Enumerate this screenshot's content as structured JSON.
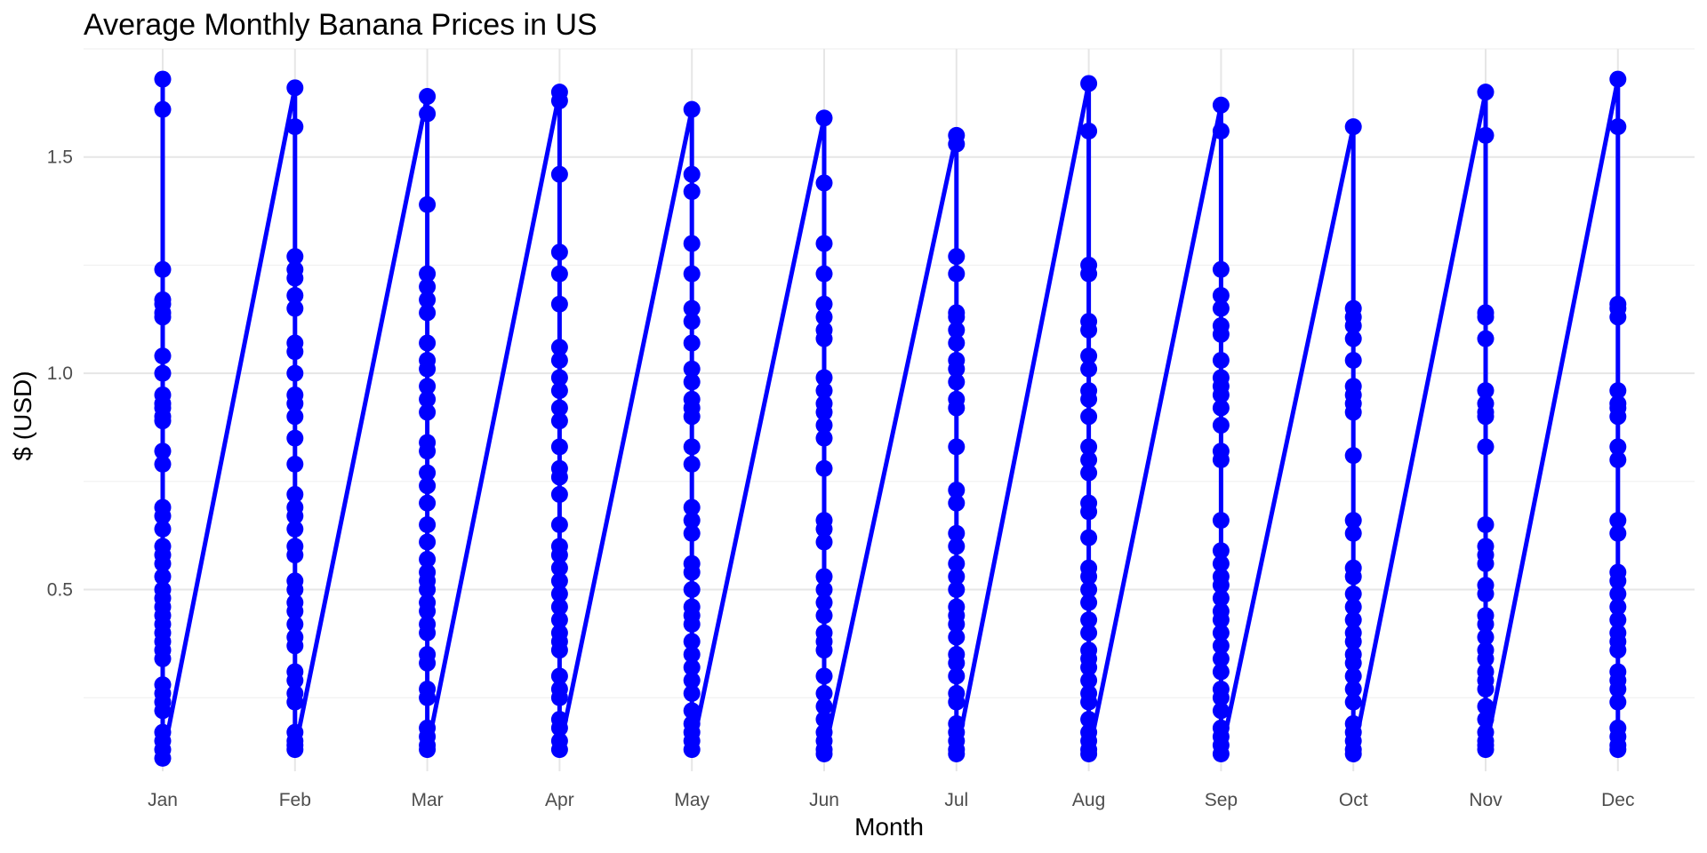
{
  "chart_data": {
    "type": "line",
    "title": "Average Monthly Banana Prices in US",
    "xlabel": "Month",
    "ylabel": "$ (USD)",
    "categories": [
      "Jan",
      "Feb",
      "Mar",
      "Apr",
      "May",
      "Jun",
      "Jul",
      "Aug",
      "Sep",
      "Oct",
      "Nov",
      "Dec"
    ],
    "ylim": [
      0.08,
      1.75
    ],
    "yticks": [
      0.5,
      1.0,
      1.5
    ],
    "ytick_labels": [
      "0.5",
      "1.0",
      "1.5"
    ],
    "grid": true,
    "legend": "none",
    "series": [
      {
        "color": "#0000ff",
        "values": [
          [
            1.68,
            1.61,
            1.24,
            1.17,
            1.16,
            1.14,
            1.13,
            1.04,
            1.0,
            0.95,
            0.93,
            0.92,
            0.9,
            0.89,
            0.82,
            0.79,
            0.69,
            0.67,
            0.64,
            0.6,
            0.58,
            0.56,
            0.53,
            0.5,
            0.48,
            0.46,
            0.44,
            0.42,
            0.4,
            0.38,
            0.36,
            0.34,
            0.28,
            0.26,
            0.24,
            0.22,
            0.17,
            0.15,
            0.13,
            0.11
          ],
          [
            1.66,
            1.57,
            1.27,
            1.24,
            1.22,
            1.18,
            1.15,
            1.07,
            1.05,
            1.0,
            0.95,
            0.93,
            0.9,
            0.85,
            0.79,
            0.72,
            0.69,
            0.67,
            0.64,
            0.6,
            0.58,
            0.52,
            0.5,
            0.47,
            0.45,
            0.42,
            0.39,
            0.37,
            0.31,
            0.29,
            0.26,
            0.24,
            0.17,
            0.15,
            0.14,
            0.13
          ],
          [
            1.64,
            1.6,
            1.39,
            1.23,
            1.2,
            1.17,
            1.14,
            1.07,
            1.03,
            1.01,
            0.97,
            0.94,
            0.91,
            0.84,
            0.82,
            0.77,
            0.74,
            0.7,
            0.65,
            0.61,
            0.57,
            0.54,
            0.52,
            0.5,
            0.47,
            0.45,
            0.42,
            0.4,
            0.35,
            0.33,
            0.27,
            0.25,
            0.18,
            0.16,
            0.14,
            0.13
          ],
          [
            1.65,
            1.63,
            1.46,
            1.28,
            1.23,
            1.16,
            1.06,
            1.03,
            0.99,
            0.96,
            0.92,
            0.89,
            0.83,
            0.78,
            0.76,
            0.72,
            0.65,
            0.6,
            0.58,
            0.55,
            0.52,
            0.49,
            0.46,
            0.43,
            0.4,
            0.38,
            0.36,
            0.3,
            0.27,
            0.25,
            0.2,
            0.18,
            0.15,
            0.13
          ],
          [
            1.61,
            1.46,
            1.42,
            1.3,
            1.23,
            1.15,
            1.12,
            1.07,
            1.01,
            0.98,
            0.94,
            0.92,
            0.9,
            0.83,
            0.79,
            0.69,
            0.66,
            0.63,
            0.56,
            0.54,
            0.5,
            0.46,
            0.44,
            0.42,
            0.38,
            0.35,
            0.32,
            0.29,
            0.26,
            0.22,
            0.19,
            0.17,
            0.15,
            0.13
          ],
          [
            1.59,
            1.44,
            1.3,
            1.23,
            1.16,
            1.13,
            1.1,
            1.08,
            0.99,
            0.96,
            0.93,
            0.91,
            0.88,
            0.85,
            0.78,
            0.66,
            0.64,
            0.61,
            0.53,
            0.5,
            0.47,
            0.44,
            0.4,
            0.38,
            0.36,
            0.3,
            0.26,
            0.23,
            0.2,
            0.17,
            0.15,
            0.13,
            0.12
          ],
          [
            1.55,
            1.53,
            1.27,
            1.23,
            1.14,
            1.13,
            1.1,
            1.07,
            1.03,
            1.01,
            0.98,
            0.94,
            0.92,
            0.83,
            0.73,
            0.7,
            0.63,
            0.6,
            0.56,
            0.53,
            0.5,
            0.46,
            0.44,
            0.42,
            0.39,
            0.35,
            0.33,
            0.3,
            0.26,
            0.24,
            0.19,
            0.17,
            0.15,
            0.13,
            0.12
          ],
          [
            1.67,
            1.56,
            1.25,
            1.23,
            1.12,
            1.1,
            1.04,
            1.01,
            0.96,
            0.94,
            0.9,
            0.83,
            0.8,
            0.77,
            0.7,
            0.68,
            0.62,
            0.55,
            0.53,
            0.5,
            0.47,
            0.43,
            0.4,
            0.36,
            0.34,
            0.32,
            0.29,
            0.26,
            0.24,
            0.2,
            0.17,
            0.15,
            0.13,
            0.12
          ],
          [
            1.62,
            1.56,
            1.24,
            1.18,
            1.15,
            1.11,
            1.09,
            1.03,
            0.99,
            0.97,
            0.95,
            0.92,
            0.88,
            0.82,
            0.8,
            0.66,
            0.59,
            0.56,
            0.53,
            0.51,
            0.48,
            0.45,
            0.43,
            0.4,
            0.37,
            0.34,
            0.31,
            0.27,
            0.25,
            0.22,
            0.18,
            0.16,
            0.14,
            0.12
          ],
          [
            1.57,
            1.15,
            1.13,
            1.11,
            1.08,
            1.03,
            0.97,
            0.95,
            0.93,
            0.91,
            0.81,
            0.66,
            0.63,
            0.55,
            0.53,
            0.49,
            0.46,
            0.43,
            0.4,
            0.38,
            0.35,
            0.33,
            0.3,
            0.27,
            0.24,
            0.19,
            0.17,
            0.15,
            0.13,
            0.12
          ],
          [
            1.65,
            1.55,
            1.14,
            1.13,
            1.08,
            0.96,
            0.93,
            0.91,
            0.9,
            0.83,
            0.65,
            0.6,
            0.58,
            0.56,
            0.51,
            0.49,
            0.44,
            0.42,
            0.39,
            0.36,
            0.34,
            0.31,
            0.29,
            0.27,
            0.23,
            0.2,
            0.17,
            0.15,
            0.14,
            0.13
          ],
          [
            1.68,
            1.57,
            1.16,
            1.15,
            1.13,
            0.96,
            0.93,
            0.92,
            0.9,
            0.83,
            0.8,
            0.66,
            0.63,
            0.54,
            0.52,
            0.49,
            0.46,
            0.43,
            0.4,
            0.38,
            0.36,
            0.31,
            0.29,
            0.27,
            0.24,
            0.18,
            0.16,
            0.14,
            0.13
          ]
        ]
      }
    ]
  }
}
